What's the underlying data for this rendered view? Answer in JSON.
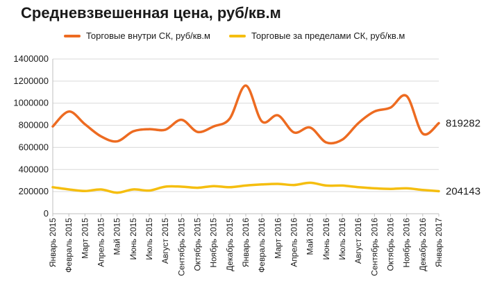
{
  "chart_data": {
    "type": "line",
    "title": "Средневзвешенная цена, руб/кв.м",
    "xlabel": "",
    "ylabel": "",
    "ylim": [
      0,
      1400000
    ],
    "yticks": [
      "0",
      "200000",
      "400000",
      "600000",
      "800000",
      "1000000",
      "1200000",
      "1400000"
    ],
    "grid": true,
    "legend_position": "top",
    "categories": [
      "Январь 2015",
      "Февраль 2015",
      "Март 2015",
      "Апрель 2015",
      "Май 2015",
      "Июнь 2015",
      "Июль 2015",
      "Август 2015",
      "Сентябрь 2015",
      "Октябрь 2015",
      "Ноябрь 2015",
      "Декабрь 2015",
      "Январь 2016",
      "Февраль 2016",
      "Март 2016",
      "Апрель 2016",
      "Май 2016",
      "Июнь 2016",
      "Июль 2016",
      "Август 2016",
      "Сентябрь 2016",
      "Октябрь 2016",
      "Ноябрь 2016",
      "Декабрь 2016",
      "Январь 2017"
    ],
    "series": [
      {
        "name": "Торговые внутри СК, руб/кв.м",
        "color": "#ED6B21",
        "values": [
          790000,
          925000,
          810000,
          700000,
          655000,
          745000,
          765000,
          760000,
          850000,
          740000,
          790000,
          860000,
          1160000,
          835000,
          890000,
          735000,
          780000,
          645000,
          670000,
          820000,
          925000,
          960000,
          1065000,
          725000,
          819282
        ],
        "end_label": "819282"
      },
      {
        "name": "Торговые за пределами СК, руб/кв.м",
        "color": "#F5BE10",
        "values": [
          240000,
          220000,
          205000,
          220000,
          190000,
          220000,
          210000,
          245000,
          245000,
          235000,
          250000,
          240000,
          255000,
          265000,
          270000,
          260000,
          280000,
          255000,
          255000,
          240000,
          230000,
          225000,
          230000,
          215000,
          204143
        ],
        "end_label": "204143"
      }
    ]
  }
}
